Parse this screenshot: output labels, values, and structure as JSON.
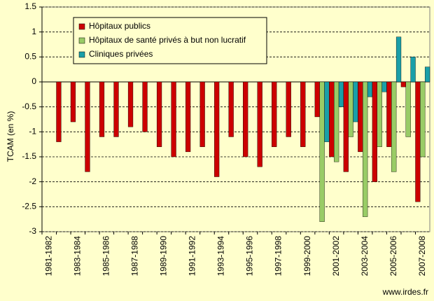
{
  "chart_data": {
    "type": "bar",
    "y_label": "TCAM (en %)",
    "source": "www.irdes.fr",
    "categories": [
      "1981-1982",
      null,
      "1983-1984",
      null,
      "1985-1986",
      null,
      "1987-1988",
      null,
      "1989-1990",
      null,
      "1991-1992",
      null,
      "1993-1994",
      null,
      "1995-1996",
      null,
      "1997-1998",
      null,
      "1999-2000",
      null,
      "2001-2002",
      null,
      "2003-2004",
      null,
      "2005-2006",
      null,
      "2007-2008"
    ],
    "series": [
      {
        "name": "Hôpitaux publics",
        "color": "#cc0000",
        "values": [
          null,
          -1.2,
          -0.8,
          -1.8,
          -1.1,
          -1.1,
          -0.9,
          -1.0,
          -1.3,
          -1.5,
          -1.4,
          -1.3,
          -1.9,
          -1.1,
          -1.5,
          -1.7,
          -1.3,
          -1.1,
          -1.3,
          -0.7,
          -1.5,
          -1.8,
          -1.4,
          -2.0,
          -1.3,
          -0.1,
          -2.4
        ]
      },
      {
        "name": "Hôpitaux de santé privés à but non lucratif",
        "color": "#99cc66",
        "values": [
          null,
          null,
          null,
          null,
          null,
          null,
          null,
          null,
          null,
          null,
          null,
          null,
          null,
          null,
          null,
          null,
          null,
          null,
          null,
          -2.8,
          -1.6,
          -1.1,
          -2.7,
          -1.3,
          -1.8,
          -1.1,
          -1.5
        ]
      },
      {
        "name": "Cliniques privées",
        "color": "#1a9fa8",
        "values": [
          null,
          null,
          null,
          null,
          null,
          null,
          null,
          null,
          null,
          null,
          null,
          null,
          null,
          null,
          null,
          null,
          null,
          null,
          null,
          -1.2,
          -0.5,
          -0.8,
          -0.3,
          -0.2,
          0.9,
          0.5,
          0.3
        ]
      }
    ],
    "ylim": [
      -3,
      1.5
    ],
    "yticks": [
      1.5,
      1,
      0.5,
      0,
      -0.5,
      -1,
      -1.5,
      -2,
      -2.5,
      -3
    ],
    "grid": true,
    "legend": "top-left"
  }
}
